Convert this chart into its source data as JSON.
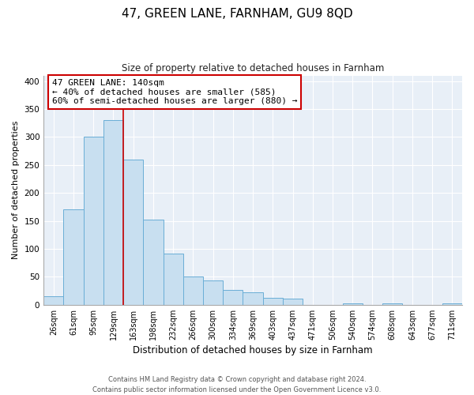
{
  "title": "47, GREEN LANE, FARNHAM, GU9 8QD",
  "subtitle": "Size of property relative to detached houses in Farnham",
  "xlabel": "Distribution of detached houses by size in Farnham",
  "ylabel": "Number of detached properties",
  "bar_labels": [
    "26sqm",
    "61sqm",
    "95sqm",
    "129sqm",
    "163sqm",
    "198sqm",
    "232sqm",
    "266sqm",
    "300sqm",
    "334sqm",
    "369sqm",
    "403sqm",
    "437sqm",
    "471sqm",
    "506sqm",
    "540sqm",
    "574sqm",
    "608sqm",
    "643sqm",
    "677sqm",
    "711sqm"
  ],
  "bar_values": [
    15,
    170,
    300,
    330,
    260,
    153,
    92,
    50,
    43,
    27,
    22,
    13,
    11,
    0,
    0,
    3,
    0,
    2,
    0,
    0,
    2
  ],
  "bar_color": "#c8dff0",
  "bar_edge_color": "#6aaed6",
  "vline_bar_index": 3,
  "vline_color": "#cc0000",
  "annotation_title": "47 GREEN LANE: 140sqm",
  "annotation_line1": "← 40% of detached houses are smaller (585)",
  "annotation_line2": "60% of semi-detached houses are larger (880) →",
  "annotation_box_color": "#ffffff",
  "annotation_box_edge": "#cc0000",
  "ylim": [
    0,
    410
  ],
  "yticks": [
    0,
    50,
    100,
    150,
    200,
    250,
    300,
    350,
    400
  ],
  "footer1": "Contains HM Land Registry data © Crown copyright and database right 2024.",
  "footer2": "Contains public sector information licensed under the Open Government Licence v3.0.",
  "bg_color": "#ffffff",
  "plot_bg_color": "#e8eff7"
}
